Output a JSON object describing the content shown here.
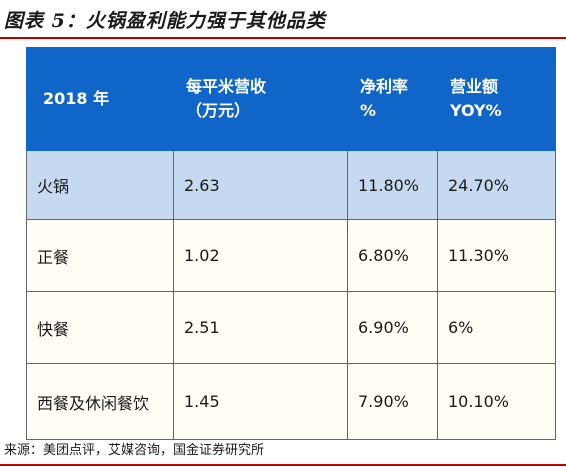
{
  "figure": {
    "title": "图表 5：火锅盈利能力强于其他品类",
    "source": "来源：美团点评，艾媒咨询，国金证券研究所"
  },
  "table": {
    "headers": [
      {
        "line1": "2018 年",
        "line2": ""
      },
      {
        "line1": "每平米营收",
        "line2": "（万元）"
      },
      {
        "line1": "净利率",
        "line2": "%"
      },
      {
        "line1": "营业额",
        "line2": "YOY%"
      }
    ],
    "rows": [
      {
        "category": "火锅",
        "revenue_per_sqm": "2.63",
        "net_margin": "11.80%",
        "yoy": "24.70%"
      },
      {
        "category": "正餐",
        "revenue_per_sqm": "1.02",
        "net_margin": "6.80%",
        "yoy": "11.30%"
      },
      {
        "category": "快餐",
        "revenue_per_sqm": "2.51",
        "net_margin": "6.90%",
        "yoy": "6%"
      },
      {
        "category": "西餐及休闲餐饮",
        "revenue_per_sqm": "1.45",
        "net_margin": "7.90%",
        "yoy": "10.10%"
      }
    ]
  },
  "colors": {
    "header_bg": "#1066c8",
    "highlight_row_bg": "#c5d9f1",
    "rule_red": "#c00000"
  }
}
